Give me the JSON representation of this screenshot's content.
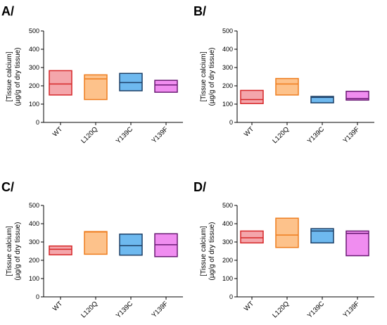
{
  "chart_data": [
    {
      "panel": "A/",
      "type": "box",
      "ylabel_line1": "[Tissue calcium]",
      "ylabel_line2": "(µg/g of dry tissue)",
      "ylim": [
        0,
        500
      ],
      "yticks": [
        "0",
        "100",
        "200",
        "300",
        "400",
        "500"
      ],
      "categories": [
        "WT",
        "L120Q",
        "Y139C",
        "Y139F"
      ],
      "boxes": [
        {
          "low": 150,
          "median": 210,
          "high": 283
        },
        {
          "low": 125,
          "median": 238,
          "high": 260
        },
        {
          "low": 173,
          "median": 218,
          "high": 268
        },
        {
          "low": 165,
          "median": 205,
          "high": 230
        }
      ]
    },
    {
      "panel": "B/",
      "type": "box",
      "ylabel_line1": "[Tissue calcium]",
      "ylabel_line2": "(µg/g of dry tissue)",
      "ylim": [
        0,
        500
      ],
      "yticks": [
        "0",
        "100",
        "200",
        "300",
        "400",
        "500"
      ],
      "categories": [
        "WT",
        "L120Q",
        "Y139C",
        "Y139F"
      ],
      "boxes": [
        {
          "low": 103,
          "median": 125,
          "high": 175
        },
        {
          "low": 150,
          "median": 210,
          "high": 240
        },
        {
          "low": 107,
          "median": 137,
          "high": 142
        },
        {
          "low": 122,
          "median": 130,
          "high": 170
        }
      ]
    },
    {
      "panel": "C/",
      "type": "box",
      "ylabel_line1": "[Tissue calcium]",
      "ylabel_line2": "(µg/g of dry tissue)",
      "ylim": [
        0,
        500
      ],
      "yticks": [
        "0",
        "100",
        "200",
        "300",
        "400",
        "500"
      ],
      "categories": [
        "WT",
        "L120Q",
        "Y139C",
        "Y139F"
      ],
      "boxes": [
        {
          "low": 230,
          "median": 260,
          "high": 278
        },
        {
          "low": 233,
          "median": 355,
          "high": 357
        },
        {
          "low": 228,
          "median": 280,
          "high": 343
        },
        {
          "low": 220,
          "median": 285,
          "high": 345
        }
      ]
    },
    {
      "panel": "D/",
      "type": "box",
      "ylabel_line1": "[Tissue calcium]",
      "ylabel_line2": "(µg/g of dry tissue)",
      "ylim": [
        0,
        500
      ],
      "yticks": [
        "0",
        "100",
        "200",
        "300",
        "400",
        "500"
      ],
      "categories": [
        "WT",
        "L120Q",
        "Y139C",
        "Y139F"
      ],
      "boxes": [
        {
          "low": 295,
          "median": 323,
          "high": 360
        },
        {
          "low": 270,
          "median": 338,
          "high": 430
        },
        {
          "low": 295,
          "median": 360,
          "high": 373
        },
        {
          "low": 225,
          "median": 347,
          "high": 360
        }
      ]
    }
  ],
  "colors": {
    "WT": {
      "fill": "#f4a6ab",
      "stroke": "#d62728"
    },
    "L120Q": {
      "fill": "#fdc28b",
      "stroke": "#ee7d1e"
    },
    "Y139C": {
      "fill": "#6eb9ef",
      "stroke": "#1c3f66"
    },
    "Y139F": {
      "fill": "#f08df0",
      "stroke": "#6a1a74"
    }
  }
}
